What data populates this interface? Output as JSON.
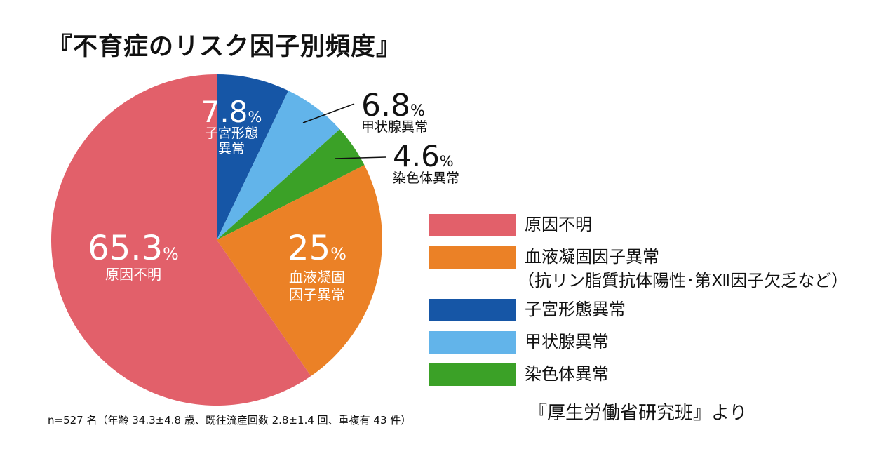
{
  "title": "『不育症のリスク因子別頻度』",
  "chart_data": {
    "type": "pie",
    "start_angle_deg": 0,
    "direction": "clockwise",
    "slices": [
      {
        "key": "uterine",
        "value": 7.8,
        "value_label": "7.8",
        "unit": "%",
        "label_lines": [
          "子宮形態",
          "異常"
        ],
        "color": "#1656a6",
        "label_inside": true
      },
      {
        "key": "thyroid",
        "value": 6.8,
        "value_label": "6.8",
        "unit": "%",
        "label_lines": [
          "甲状腺異常"
        ],
        "color": "#62b4ea",
        "label_inside": false
      },
      {
        "key": "chromosome",
        "value": 4.6,
        "value_label": "4.6",
        "unit": "%",
        "label_lines": [
          "染色体異常"
        ],
        "color": "#3ba127",
        "label_inside": false
      },
      {
        "key": "coagulation",
        "value": 25,
        "value_label": "25",
        "unit": "%",
        "label_lines": [
          "血液凝固",
          "因子異常"
        ],
        "color": "#eb8126",
        "label_inside": true
      },
      {
        "key": "unknown",
        "value": 65.3,
        "value_label": "65.3",
        "unit": "%",
        "label_lines": [
          "原因不明"
        ],
        "color": "#e2606a",
        "label_inside": true
      }
    ]
  },
  "legend": [
    {
      "label": "原因不明",
      "color": "#e2606a"
    },
    {
      "label": "血液凝固因子異常",
      "note": "（抗リン脂質抗体陽性･第Ⅻ因子欠乏など）",
      "color": "#eb8126"
    },
    {
      "label": "子宮形態異常",
      "color": "#1656a6"
    },
    {
      "label": "甲状腺異常",
      "color": "#62b4ea"
    },
    {
      "label": "染色体異常",
      "color": "#3ba127"
    }
  ],
  "footnote": "n=527 名（年齢 34.3±4.8 歳、既往流産回数 2.8±1.4 回、重複有 43 件）",
  "source": "『厚生労働省研究班』より"
}
